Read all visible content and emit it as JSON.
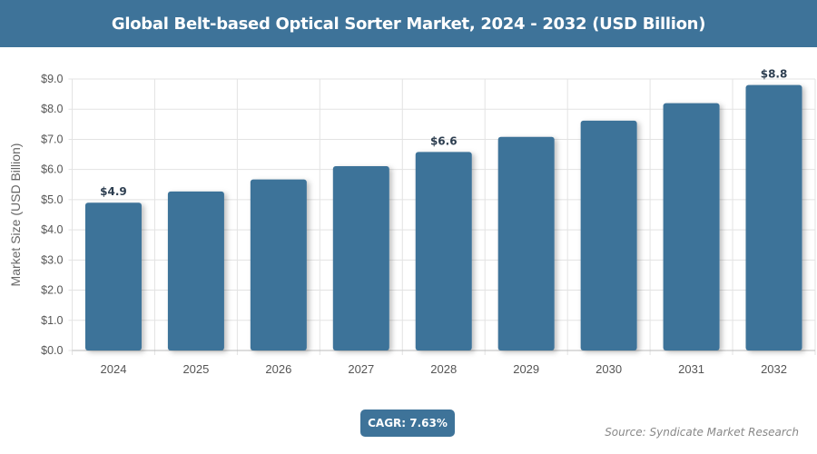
{
  "chart_data": {
    "type": "bar",
    "title": "Global Belt-based Optical Sorter Market, 2024 - 2032 (USD Billion)",
    "xlabel": "",
    "ylabel": "Market Size (USD Billion)",
    "categories": [
      "2024",
      "2025",
      "2026",
      "2027",
      "2028",
      "2029",
      "2030",
      "2031",
      "2032"
    ],
    "values": [
      4.9,
      5.27,
      5.67,
      6.11,
      6.58,
      7.08,
      7.62,
      8.2,
      8.8
    ],
    "data_labels": {
      "2024": "$4.9",
      "2028": "$6.6",
      "2032": "$8.8"
    },
    "ylim": [
      0,
      9
    ],
    "yticks": [
      "$0.0",
      "$1.0",
      "$2.0",
      "$3.0",
      "$4.0",
      "$5.0",
      "$6.0",
      "$7.0",
      "$8.0",
      "$9.0"
    ],
    "grid": true,
    "bar_color": "#3e7399"
  },
  "cagr": "CAGR: 7.63%",
  "source": "Source: Syndicate Market Research"
}
